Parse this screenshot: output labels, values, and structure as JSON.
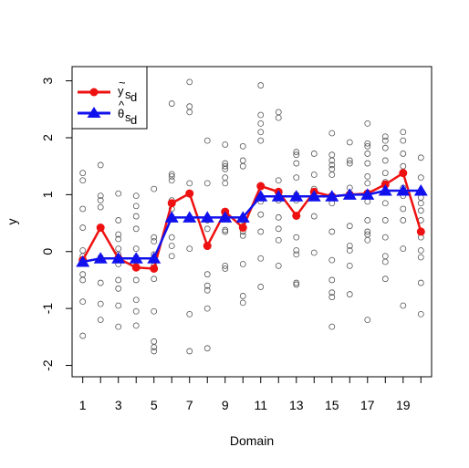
{
  "chart_data": {
    "type": "scatter",
    "xlabel": "Domain",
    "ylabel": "y",
    "xlim": [
      0.4,
      20.6
    ],
    "ylim": [
      -2.2,
      3.25
    ],
    "xticks": [
      1,
      3,
      5,
      7,
      9,
      11,
      13,
      15,
      17,
      19
    ],
    "xtick_labels": [
      "1",
      "3",
      "5",
      "7",
      "9",
      "11",
      "13",
      "15",
      "17",
      "19"
    ],
    "yticks": [
      -2,
      -1,
      0,
      1,
      2,
      3
    ],
    "ytick_labels": [
      "-2",
      "-1",
      "0",
      "1",
      "2",
      "3"
    ],
    "x": [
      1,
      2,
      3,
      4,
      5,
      6,
      7,
      8,
      9,
      10,
      11,
      12,
      13,
      14,
      15,
      16,
      17,
      18,
      19,
      20
    ],
    "legend_position": "top-left",
    "series": [
      {
        "name_main": "y",
        "name_accent": "~",
        "name_sub": "s",
        "name_subsub": "d",
        "kind": "line+filled-circle",
        "color": "#ee1111",
        "values": [
          -0.15,
          0.42,
          -0.12,
          -0.28,
          -0.3,
          0.85,
          1.02,
          0.1,
          0.7,
          0.42,
          1.15,
          1.05,
          0.63,
          1.05,
          0.97,
          1.0,
          1.02,
          1.18,
          1.38,
          0.35
        ]
      },
      {
        "name_main": "θ",
        "name_accent": "^",
        "name_sub": "s",
        "name_subsub": "d",
        "kind": "line+filled-triangle",
        "color": "#1111ee",
        "values": [
          -0.18,
          -0.12,
          -0.12,
          -0.12,
          -0.12,
          0.6,
          0.6,
          0.6,
          0.6,
          0.6,
          0.97,
          0.97,
          0.97,
          0.97,
          0.97,
          1.0,
          1.0,
          1.07,
          1.07,
          1.07
        ]
      }
    ],
    "observations": {
      "color": "#555555",
      "groups": [
        [
          1.38,
          1.25,
          0.75,
          0.42,
          0.02,
          -0.08,
          -0.4,
          -0.5,
          -0.88,
          -1.48
        ],
        [
          1.52,
          0.98,
          0.9,
          0.78,
          0.42,
          -0.1,
          -0.55,
          -0.92,
          -1.2
        ],
        [
          1.02,
          0.55,
          0.3,
          0.22,
          0.05,
          -0.05,
          -0.22,
          -0.5,
          -0.65,
          -0.95,
          -1.32
        ],
        [
          0.98,
          0.8,
          0.62,
          0.4,
          0.05,
          -0.1,
          -0.25,
          -0.5,
          -0.85,
          -1.05,
          -1.3
        ],
        [
          1.1,
          0.25,
          0.18,
          -0.05,
          -0.25,
          -0.48,
          -1.05,
          -1.58,
          -1.68,
          -1.75
        ],
        [
          2.6,
          1.36,
          1.32,
          1.25,
          0.9,
          0.75,
          0.58,
          0.25,
          0.1,
          -0.08
        ],
        [
          2.98,
          2.55,
          2.45,
          1.2,
          0.6,
          0.05,
          -1.1,
          -1.75
        ],
        [
          1.95,
          1.2,
          0.55,
          0.4,
          0.12,
          0.1,
          -0.4,
          -0.6,
          -0.68,
          -1.0,
          -1.7
        ],
        [
          1.88,
          1.55,
          1.5,
          1.45,
          1.3,
          1.2,
          0.6,
          0.38,
          0.35,
          -0.25,
          -0.3
        ],
        [
          1.85,
          1.6,
          1.5,
          0.55,
          0.35,
          0.28,
          -0.22,
          -0.78,
          -0.9
        ],
        [
          2.92,
          2.4,
          2.25,
          2.1,
          1.95,
          1.15,
          0.98,
          0.88,
          0.65,
          0.35,
          -0.12,
          -0.62
        ],
        [
          2.45,
          2.35,
          1.25,
          1.05,
          0.9,
          0.6,
          0.4,
          0.2,
          -0.25
        ],
        [
          1.75,
          1.7,
          1.55,
          1.3,
          1.0,
          0.9,
          0.62,
          0.25,
          0.02,
          -0.05,
          -0.55,
          -0.58
        ],
        [
          1.72,
          1.35,
          1.1,
          1.0,
          0.95,
          0.62,
          -0.02
        ],
        [
          2.08,
          1.7,
          1.6,
          1.52,
          1.45,
          1.35,
          0.97,
          0.85,
          0.35,
          -0.15,
          -0.5,
          -0.72,
          -0.8,
          -1.32
        ],
        [
          1.92,
          1.6,
          1.55,
          1.12,
          0.98,
          0.45,
          0.1,
          0.02,
          -0.25,
          -0.75
        ],
        [
          2.25,
          1.9,
          1.85,
          1.72,
          1.55,
          1.32,
          1.2,
          1.0,
          0.88,
          0.55,
          0.35,
          0.3,
          0.2,
          -1.2
        ],
        [
          2.02,
          1.95,
          1.82,
          1.6,
          1.38,
          1.22,
          0.85,
          0.55,
          0.25,
          -0.08,
          -0.18,
          -0.48
        ],
        [
          2.1,
          1.95,
          1.72,
          1.5,
          1.4,
          1.12,
          0.98,
          0.75,
          0.55,
          0.05,
          -0.95
        ],
        [
          1.65,
          1.3,
          0.95,
          0.85,
          0.72,
          0.55,
          0.25,
          0.02,
          -0.1,
          -0.55,
          -1.1
        ]
      ]
    }
  }
}
